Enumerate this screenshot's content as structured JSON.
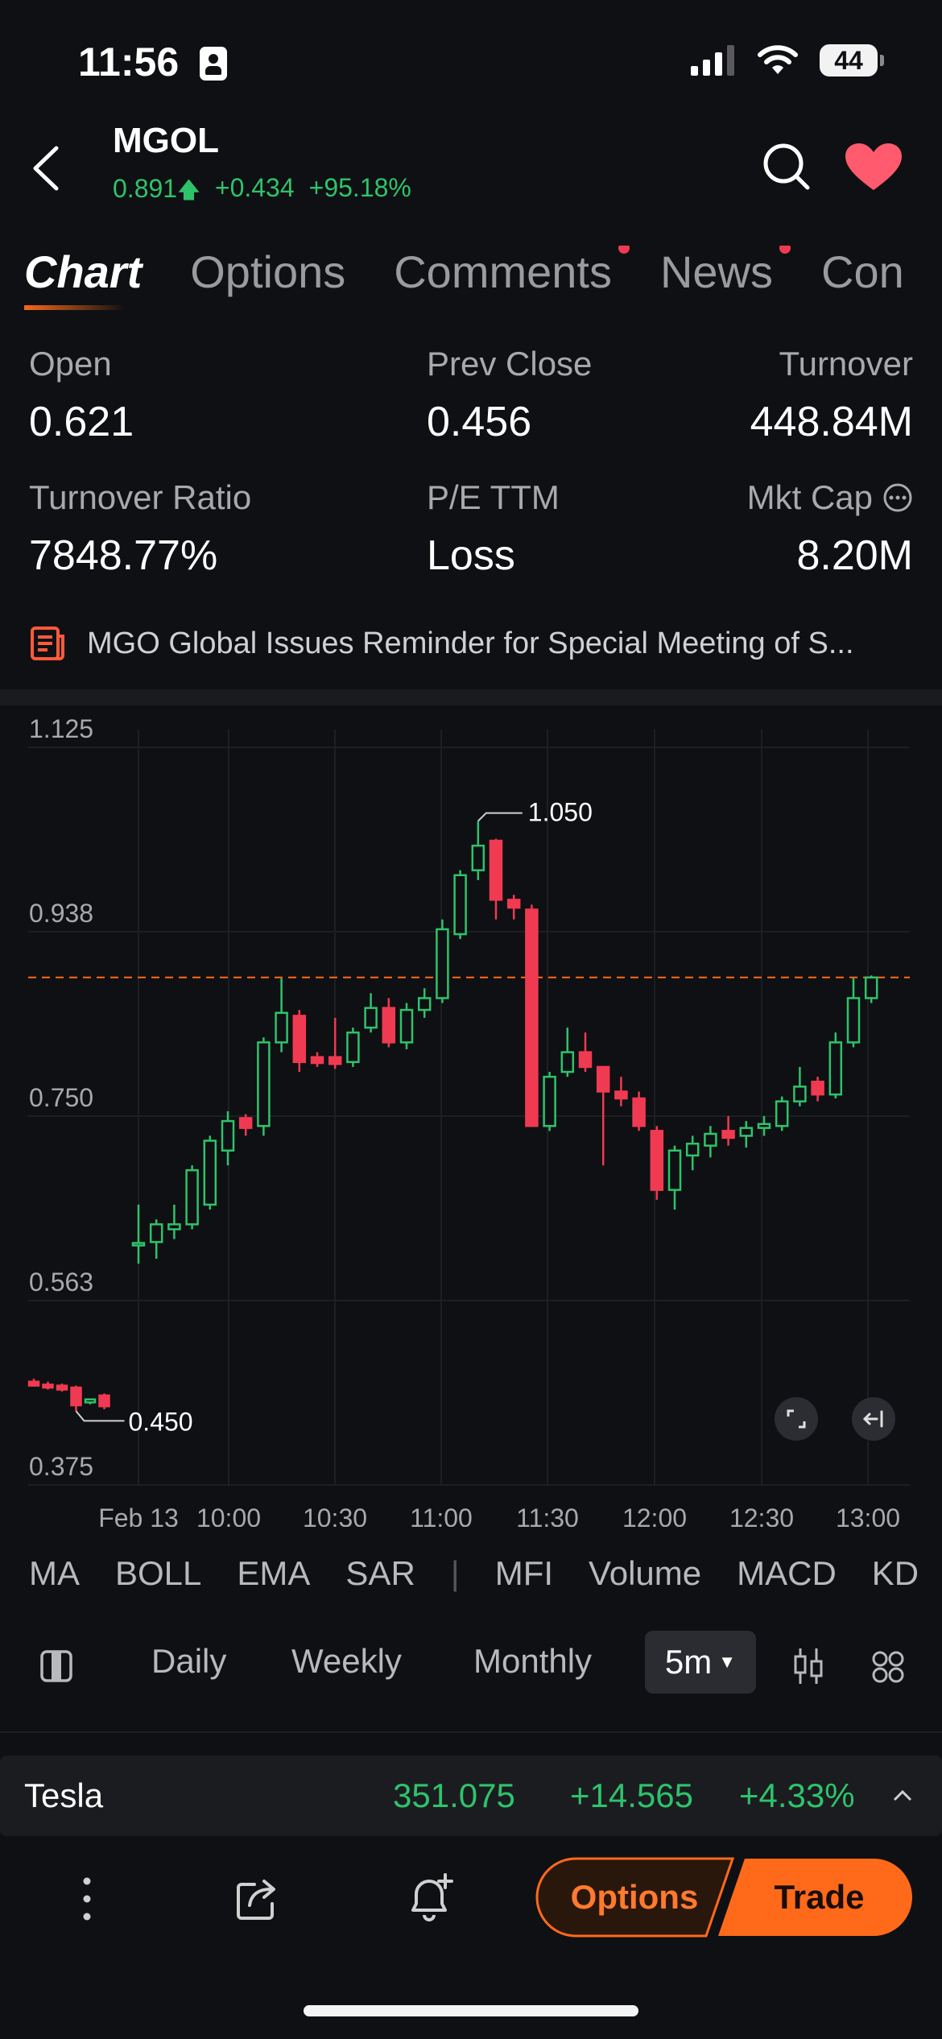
{
  "status": {
    "time": "11:56",
    "battery": "44"
  },
  "header": {
    "ticker": "MGOL",
    "price": "0.891",
    "change": "+0.434",
    "change_pct": "+95.18%"
  },
  "tabs": [
    {
      "label": "Chart",
      "active": true,
      "dot": false
    },
    {
      "label": "Options",
      "active": false,
      "dot": false
    },
    {
      "label": "Comments",
      "active": false,
      "dot": true
    },
    {
      "label": "News",
      "active": false,
      "dot": true
    },
    {
      "label": "Con",
      "active": false,
      "dot": false
    }
  ],
  "stats": {
    "open_label": "Open",
    "open_value": "0.621",
    "prev_close_label": "Prev Close",
    "prev_close_value": "0.456",
    "turnover_label": "Turnover",
    "turnover_value": "448.84M",
    "turnover_ratio_label": "Turnover Ratio",
    "turnover_ratio_value": "7848.77%",
    "pe_label": "P/E TTM",
    "pe_value": "Loss",
    "mkt_cap_label": "Mkt Cap",
    "mkt_cap_value": "8.20M"
  },
  "news": {
    "headline": "MGO Global Issues Reminder for Special Meeting of S..."
  },
  "colors": {
    "up": "#2ec36b",
    "down": "#f03a52",
    "accent": "#ff6a1a"
  },
  "chart_data": {
    "type": "candlestick",
    "y_ticks": [
      "1.125",
      "0.938",
      "0.750",
      "0.563",
      "0.375"
    ],
    "x_ticks": [
      "Feb 13",
      "10:00",
      "10:30",
      "11:00",
      "11:30",
      "12:00",
      "12:30",
      "13:00"
    ],
    "ylim": [
      0.375,
      1.125
    ],
    "high_label": "1.050",
    "low_label": "0.450",
    "current_price_line": 0.891,
    "premarket": [
      {
        "o": 0.48,
        "h": 0.483,
        "l": 0.475,
        "c": 0.476
      },
      {
        "o": 0.477,
        "h": 0.48,
        "l": 0.472,
        "c": 0.474
      },
      {
        "o": 0.476,
        "h": 0.478,
        "l": 0.47,
        "c": 0.472
      },
      {
        "o": 0.474,
        "h": 0.476,
        "l": 0.45,
        "c": 0.456
      },
      {
        "o": 0.459,
        "h": 0.463,
        "l": 0.457,
        "c": 0.462
      },
      {
        "o": 0.466,
        "h": 0.468,
        "l": 0.452,
        "c": 0.455
      }
    ],
    "candles": [
      {
        "o": 0.62,
        "h": 0.66,
        "l": 0.6,
        "c": 0.621
      },
      {
        "o": 0.622,
        "h": 0.645,
        "l": 0.605,
        "c": 0.64
      },
      {
        "o": 0.635,
        "h": 0.66,
        "l": 0.625,
        "c": 0.64
      },
      {
        "o": 0.64,
        "h": 0.7,
        "l": 0.635,
        "c": 0.695
      },
      {
        "o": 0.66,
        "h": 0.73,
        "l": 0.655,
        "c": 0.725
      },
      {
        "o": 0.715,
        "h": 0.755,
        "l": 0.7,
        "c": 0.745
      },
      {
        "o": 0.748,
        "h": 0.752,
        "l": 0.73,
        "c": 0.738
      },
      {
        "o": 0.74,
        "h": 0.83,
        "l": 0.73,
        "c": 0.825
      },
      {
        "o": 0.825,
        "h": 0.89,
        "l": 0.815,
        "c": 0.855
      },
      {
        "o": 0.852,
        "h": 0.858,
        "l": 0.795,
        "c": 0.805
      },
      {
        "o": 0.81,
        "h": 0.815,
        "l": 0.8,
        "c": 0.804
      },
      {
        "o": 0.81,
        "h": 0.85,
        "l": 0.798,
        "c": 0.803
      },
      {
        "o": 0.805,
        "h": 0.84,
        "l": 0.8,
        "c": 0.835
      },
      {
        "o": 0.84,
        "h": 0.875,
        "l": 0.835,
        "c": 0.86
      },
      {
        "o": 0.86,
        "h": 0.87,
        "l": 0.82,
        "c": 0.825
      },
      {
        "o": 0.825,
        "h": 0.865,
        "l": 0.818,
        "c": 0.858
      },
      {
        "o": 0.858,
        "h": 0.88,
        "l": 0.85,
        "c": 0.87
      },
      {
        "o": 0.87,
        "h": 0.95,
        "l": 0.865,
        "c": 0.94
      },
      {
        "o": 0.935,
        "h": 1.0,
        "l": 0.93,
        "c": 0.995
      },
      {
        "o": 1.0,
        "h": 1.05,
        "l": 0.99,
        "c": 1.025
      },
      {
        "o": 1.03,
        "h": 1.032,
        "l": 0.95,
        "c": 0.97
      },
      {
        "o": 0.97,
        "h": 0.975,
        "l": 0.95,
        "c": 0.962
      },
      {
        "o": 0.96,
        "h": 0.965,
        "l": 0.74,
        "c": 0.74
      },
      {
        "o": 0.74,
        "h": 0.795,
        "l": 0.735,
        "c": 0.79
      },
      {
        "o": 0.795,
        "h": 0.84,
        "l": 0.79,
        "c": 0.815
      },
      {
        "o": 0.815,
        "h": 0.835,
        "l": 0.795,
        "c": 0.8
      },
      {
        "o": 0.8,
        "h": 0.8,
        "l": 0.7,
        "c": 0.775
      },
      {
        "o": 0.775,
        "h": 0.79,
        "l": 0.76,
        "c": 0.768
      },
      {
        "o": 0.768,
        "h": 0.775,
        "l": 0.735,
        "c": 0.74
      },
      {
        "o": 0.735,
        "h": 0.74,
        "l": 0.665,
        "c": 0.675
      },
      {
        "o": 0.675,
        "h": 0.72,
        "l": 0.655,
        "c": 0.715
      },
      {
        "o": 0.71,
        "h": 0.73,
        "l": 0.695,
        "c": 0.722
      },
      {
        "o": 0.72,
        "h": 0.74,
        "l": 0.708,
        "c": 0.732
      },
      {
        "o": 0.735,
        "h": 0.75,
        "l": 0.72,
        "c": 0.728
      },
      {
        "o": 0.73,
        "h": 0.745,
        "l": 0.718,
        "c": 0.738
      },
      {
        "o": 0.738,
        "h": 0.75,
        "l": 0.73,
        "c": 0.742
      },
      {
        "o": 0.74,
        "h": 0.77,
        "l": 0.735,
        "c": 0.765
      },
      {
        "o": 0.765,
        "h": 0.8,
        "l": 0.76,
        "c": 0.78
      },
      {
        "o": 0.785,
        "h": 0.79,
        "l": 0.765,
        "c": 0.772
      },
      {
        "o": 0.772,
        "h": 0.835,
        "l": 0.768,
        "c": 0.825
      },
      {
        "o": 0.825,
        "h": 0.89,
        "l": 0.82,
        "c": 0.87
      },
      {
        "o": 0.87,
        "h": 0.893,
        "l": 0.865,
        "c": 0.891
      }
    ]
  },
  "indicators": [
    "MA",
    "BOLL",
    "EMA",
    "SAR",
    "|",
    "MFI",
    "Volume",
    "MACD",
    "KD"
  ],
  "periods": {
    "daily": "Daily",
    "weekly": "Weekly",
    "monthly": "Monthly",
    "active": "5m"
  },
  "watch_bar": {
    "name": "Tesla",
    "price": "351.075",
    "change": "+14.565",
    "change_pct": "+4.33%"
  },
  "actions": {
    "options": "Options",
    "trade": "Trade"
  }
}
